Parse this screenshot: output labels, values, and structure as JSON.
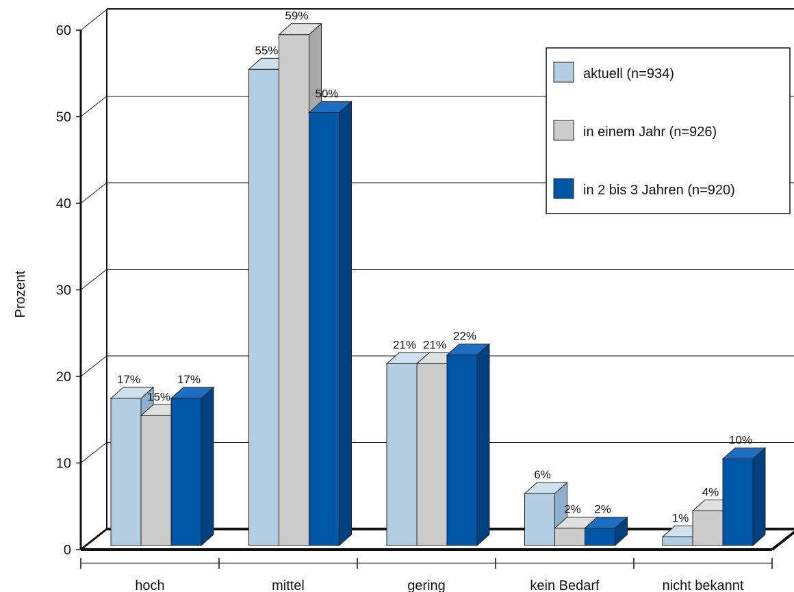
{
  "chart_data": {
    "type": "bar",
    "title": "",
    "ylabel": "Prozent",
    "xlabel": "",
    "ylim": [
      0,
      60
    ],
    "yticks": [
      0,
      10,
      20,
      30,
      40,
      50,
      60
    ],
    "grid": true,
    "legend_position": "top-right",
    "categories": [
      "hoch",
      "mittel",
      "gering",
      "kein Bedarf",
      "nicht bekannt"
    ],
    "series": [
      {
        "name": "aktuell (n=934)",
        "values": [
          17,
          55,
          21,
          6,
          1
        ],
        "labels": [
          "17%",
          "55%",
          "21%",
          "6%",
          "1%"
        ],
        "color": "#b3cde3",
        "side_color": "#8fb0cc",
        "top_color": "#cfe0ef"
      },
      {
        "name": "in einem Jahr (n=926)",
        "values": [
          15,
          59,
          21,
          2,
          4
        ],
        "labels": [
          "15%",
          "59%",
          "21%",
          "2%",
          "4%"
        ],
        "color": "#cccccc",
        "side_color": "#a8a8a8",
        "top_color": "#e0e0e0"
      },
      {
        "name": "in 2 bis 3 Jahren (n=920)",
        "values": [
          17,
          50,
          22,
          2,
          10
        ],
        "labels": [
          "17%",
          "50%",
          "22%",
          "2%",
          "10%"
        ],
        "color": "#0057a8",
        "side_color": "#00427f",
        "top_color": "#1c6fc0"
      }
    ]
  }
}
